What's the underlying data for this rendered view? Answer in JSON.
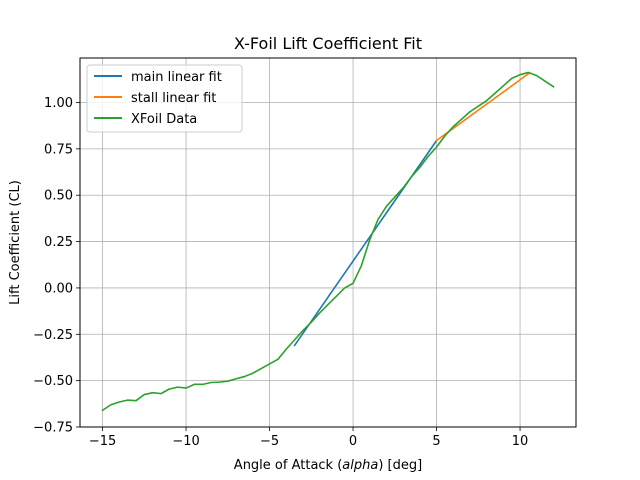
{
  "chart_data": {
    "type": "line",
    "title": "X-Foil Lift Coefficient Fit",
    "xlabel_prefix": "Angle of Attack (",
    "xlabel_italic": "alpha",
    "xlabel_suffix": ") [deg]",
    "ylabel": "Lift Coefficient (CL)",
    "xlim": [
      -16.35,
      13.35
    ],
    "ylim": [
      -0.75,
      1.24
    ],
    "xticks": [
      -15,
      -10,
      -5,
      0,
      5,
      10
    ],
    "xtick_labels": [
      "−15",
      "−10",
      "−5",
      "0",
      "5",
      "10"
    ],
    "yticks": [
      -0.75,
      -0.5,
      -0.25,
      0.0,
      0.25,
      0.5,
      0.75,
      1.0
    ],
    "ytick_labels": [
      "−0.75",
      "−0.50",
      "−0.25",
      "0.00",
      "0.25",
      "0.50",
      "0.75",
      "1.00"
    ],
    "grid": true,
    "legend_position": "upper-left",
    "series": [
      {
        "name": "main linear fit",
        "color": "#1f77b4",
        "x": [
          -3.5,
          5.0
        ],
        "y": [
          -0.31,
          0.795
        ]
      },
      {
        "name": "stall linear fit",
        "color": "#ff7f0e",
        "x": [
          5.0,
          10.5
        ],
        "y": [
          0.795,
          1.155
        ]
      },
      {
        "name": "XFoil Data",
        "color": "#2ca02c",
        "x": [
          -15,
          -14.5,
          -14,
          -13.5,
          -13,
          -12.5,
          -12,
          -11.5,
          -11,
          -10.5,
          -10,
          -9.5,
          -9,
          -8.5,
          -8,
          -7.5,
          -7,
          -6.5,
          -6,
          -5.5,
          -5,
          -4.5,
          -4,
          -3.5,
          -3,
          -2.5,
          -2,
          -1.5,
          -1,
          -0.5,
          0,
          0.5,
          1,
          1.5,
          2,
          2.5,
          3,
          3.5,
          4,
          4.5,
          5,
          5.5,
          6,
          6.5,
          7,
          7.5,
          8,
          8.5,
          9,
          9.5,
          10,
          10.5,
          11,
          11.5,
          12
        ],
        "y": [
          -0.66,
          -0.63,
          -0.615,
          -0.605,
          -0.608,
          -0.575,
          -0.565,
          -0.57,
          -0.545,
          -0.535,
          -0.54,
          -0.52,
          -0.52,
          -0.51,
          -0.508,
          -0.503,
          -0.49,
          -0.478,
          -0.46,
          -0.435,
          -0.41,
          -0.385,
          -0.33,
          -0.28,
          -0.23,
          -0.185,
          -0.135,
          -0.09,
          -0.045,
          0.0,
          0.025,
          0.12,
          0.26,
          0.37,
          0.44,
          0.49,
          0.54,
          0.6,
          0.65,
          0.71,
          0.76,
          0.82,
          0.87,
          0.91,
          0.95,
          0.98,
          1.01,
          1.05,
          1.09,
          1.13,
          1.15,
          1.162,
          1.145,
          1.115,
          1.085
        ]
      }
    ]
  }
}
